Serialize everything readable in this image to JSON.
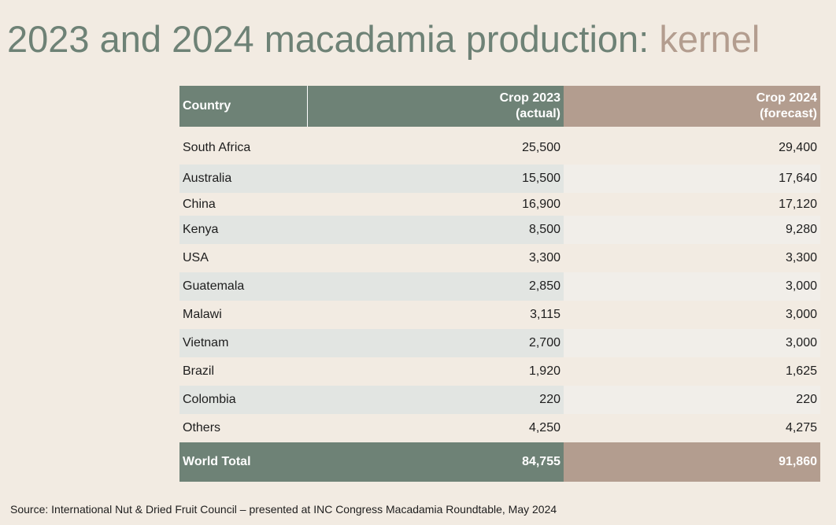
{
  "title": {
    "main": "2023 and 2024 macadamia production: ",
    "accent": "kernel"
  },
  "table": {
    "headers": {
      "country": "Country",
      "crop2023_line1": "Crop 2023",
      "crop2023_line2": "(actual)",
      "crop2024_line1": "Crop 2024",
      "crop2024_line2": "(forecast)"
    },
    "rows": [
      {
        "country": "South Africa",
        "crop2023": "25,500",
        "crop2024": "29,400"
      },
      {
        "country": "Australia",
        "crop2023": "15,500",
        "crop2024": "17,640"
      },
      {
        "country": "China",
        "crop2023": "16,900",
        "crop2024": "17,120"
      },
      {
        "country": "Kenya",
        "crop2023": "8,500",
        "crop2024": "9,280"
      },
      {
        "country": "USA",
        "crop2023": "3,300",
        "crop2024": "3,300"
      },
      {
        "country": "Guatemala",
        "crop2023": "2,850",
        "crop2024": "3,000"
      },
      {
        "country": "Malawi",
        "crop2023": "3,115",
        "crop2024": "3,000"
      },
      {
        "country": "Vietnam",
        "crop2023": "2,700",
        "crop2024": "3,000"
      },
      {
        "country": "Brazil",
        "crop2023": "1,920",
        "crop2024": "1,625"
      },
      {
        "country": "Colombia",
        "crop2023": "220",
        "crop2024": "220"
      },
      {
        "country": "Others",
        "crop2023": "4,250",
        "crop2024": "4,275"
      }
    ],
    "total": {
      "country": "World Total",
      "crop2023": "84,755",
      "crop2024": "91,860"
    }
  },
  "source": "Source: International Nut & Dried Fruit Council – presented at INC Congress Macadamia Roundtable, May 2024",
  "colors": {
    "background": "#f2ebe2",
    "green_header": "#6e8276",
    "taupe_header": "#b39d8f",
    "band_green": "#e2e5e2",
    "band_taupe": "#f1eee9"
  },
  "chart_data": {
    "type": "table",
    "title": "2023 and 2024 macadamia production: kernel",
    "columns": [
      "Country",
      "Crop 2023 (actual)",
      "Crop 2024 (forecast)"
    ],
    "categories": [
      "South Africa",
      "Australia",
      "China",
      "Kenya",
      "USA",
      "Guatemala",
      "Malawi",
      "Vietnam",
      "Brazil",
      "Colombia",
      "Others",
      "World Total"
    ],
    "series": [
      {
        "name": "Crop 2023 (actual)",
        "values": [
          25500,
          15500,
          16900,
          8500,
          3300,
          2850,
          3115,
          2700,
          1920,
          220,
          4250,
          84755
        ]
      },
      {
        "name": "Crop 2024 (forecast)",
        "values": [
          29400,
          17640,
          17120,
          9280,
          3300,
          3000,
          3000,
          3000,
          1625,
          220,
          4275,
          91860
        ]
      }
    ]
  }
}
